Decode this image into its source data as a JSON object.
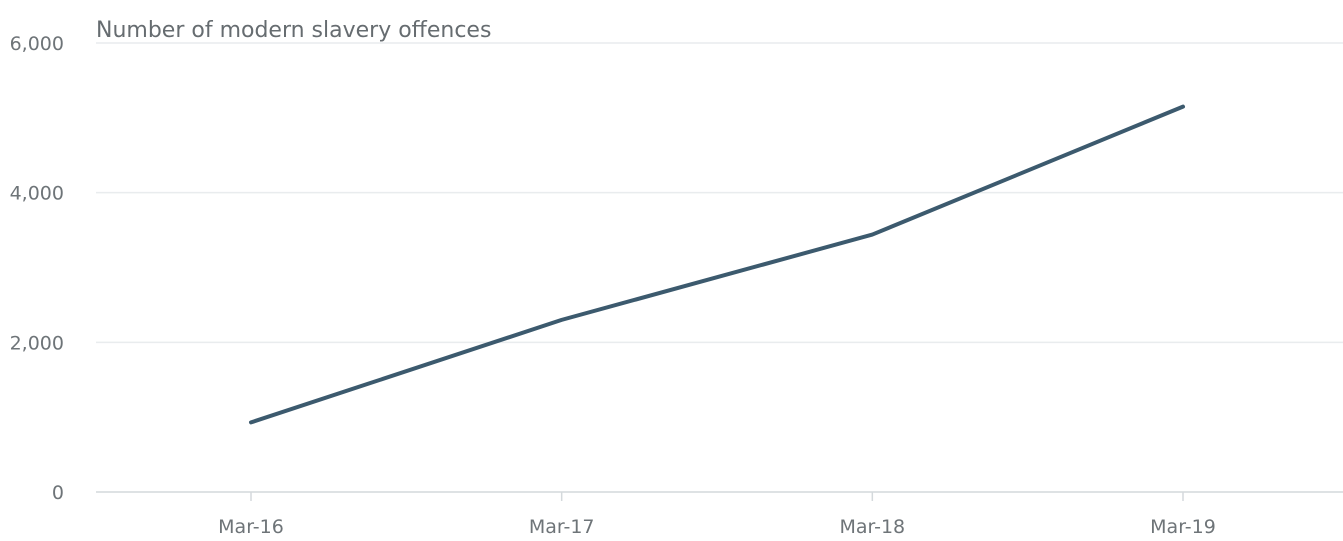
{
  "chart_data": {
    "type": "line",
    "title": "Number of modern slavery offences",
    "xlabel": "",
    "ylabel": "",
    "categories": [
      "Mar-16",
      "Mar-17",
      "Mar-18",
      "Mar-19"
    ],
    "series": [
      {
        "values": [
          930,
          2300,
          3440,
          5150
        ],
        "color": "#3c5a6e"
      }
    ],
    "ylim": [
      0,
      6000
    ],
    "yticks": [
      0,
      2000,
      4000,
      6000
    ],
    "ytick_labels": [
      "0",
      "2,000",
      "4,000",
      "6,000"
    ],
    "grid": true,
    "legend": "none"
  }
}
